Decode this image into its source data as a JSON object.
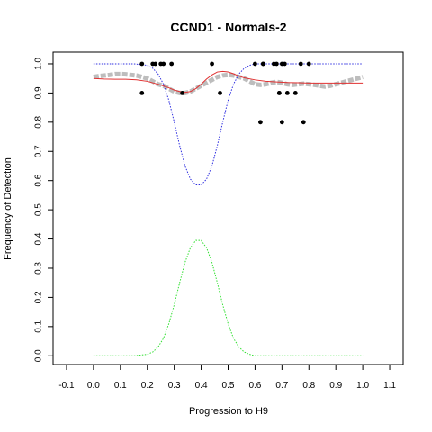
{
  "chart_data": {
    "type": "scatter",
    "title": "CCND1 - Normals-2",
    "xlabel": "Progression to H9",
    "ylabel": "Frequency of Detection",
    "xlim": [
      -0.15,
      1.15
    ],
    "ylim": [
      -0.03,
      1.04
    ],
    "x_ticks": [
      -0.1,
      0.0,
      0.1,
      0.2,
      0.3,
      0.4,
      0.5,
      0.6,
      0.7,
      0.8,
      0.9,
      1.0,
      1.1
    ],
    "x_tick_labels": [
      "-0.1",
      "0.0",
      "0.1",
      "0.2",
      "0.3",
      "0.4",
      "0.5",
      "0.6",
      "0.7",
      "0.8",
      "0.9",
      "1.0",
      "1.1"
    ],
    "y_ticks": [
      0.0,
      0.1,
      0.2,
      0.3,
      0.4,
      0.5,
      0.6,
      0.7,
      0.8,
      0.9,
      1.0
    ],
    "y_tick_labels": [
      "0.0",
      "0.1",
      "0.2",
      "0.3",
      "0.4",
      "0.5",
      "0.6",
      "0.7",
      "0.8",
      "0.9",
      "1.0"
    ],
    "grid": false,
    "legend": false,
    "colors": {
      "points": "#000000",
      "smoothed": "#bdbdbd",
      "fit": "#e03030",
      "upper": "#3030e0",
      "density": "#30e030"
    },
    "series": [
      {
        "kind": "points",
        "x": [
          0.18,
          0.18,
          0.22,
          0.23,
          0.25,
          0.26,
          0.29,
          0.33,
          0.44,
          0.47,
          0.6,
          0.62,
          0.63,
          0.63,
          0.67,
          0.68,
          0.69,
          0.69,
          0.7,
          0.7,
          0.71,
          0.72,
          0.75,
          0.77,
          0.78,
          0.8
        ],
        "y": [
          1.0,
          0.9,
          1.0,
          1.0,
          1.0,
          1.0,
          1.0,
          0.9,
          1.0,
          0.9,
          1.0,
          0.8,
          1.0,
          1.0,
          1.0,
          1.0,
          0.9,
          0.9,
          0.8,
          1.0,
          1.0,
          0.9,
          0.9,
          1.0,
          0.8,
          1.0
        ]
      },
      {
        "kind": "smoothed",
        "x": [
          0.0,
          0.02,
          0.04,
          0.06,
          0.08,
          0.1,
          0.12,
          0.14,
          0.16,
          0.18,
          0.2,
          0.22,
          0.24,
          0.26,
          0.28,
          0.3,
          0.32,
          0.34,
          0.36,
          0.38,
          0.4,
          0.42,
          0.44,
          0.46,
          0.48,
          0.5,
          0.52,
          0.54,
          0.56,
          0.58,
          0.6,
          0.62,
          0.64,
          0.66,
          0.68,
          0.7,
          0.72,
          0.74,
          0.76,
          0.78,
          0.8,
          0.82,
          0.84,
          0.86,
          0.88,
          0.9,
          0.92,
          0.94,
          0.96,
          0.98,
          1.0
        ],
        "y": [
          0.955,
          0.958,
          0.96,
          0.962,
          0.965,
          0.965,
          0.964,
          0.962,
          0.96,
          0.955,
          0.95,
          0.94,
          0.93,
          0.925,
          0.915,
          0.905,
          0.9,
          0.9,
          0.905,
          0.915,
          0.925,
          0.935,
          0.945,
          0.955,
          0.96,
          0.962,
          0.96,
          0.955,
          0.95,
          0.94,
          0.93,
          0.928,
          0.93,
          0.935,
          0.938,
          0.935,
          0.93,
          0.928,
          0.93,
          0.932,
          0.93,
          0.928,
          0.925,
          0.922,
          0.925,
          0.93,
          0.935,
          0.94,
          0.945,
          0.95,
          0.955
        ]
      },
      {
        "kind": "fit",
        "x": [
          0.0,
          0.04,
          0.08,
          0.12,
          0.16,
          0.2,
          0.24,
          0.28,
          0.3,
          0.32,
          0.34,
          0.36,
          0.38,
          0.4,
          0.42,
          0.44,
          0.46,
          0.48,
          0.5,
          0.52,
          0.54,
          0.56,
          0.6,
          0.64,
          0.68,
          0.72,
          0.76,
          0.8,
          0.84,
          0.88,
          0.92,
          0.96,
          1.0
        ],
        "y": [
          0.95,
          0.948,
          0.947,
          0.947,
          0.945,
          0.94,
          0.93,
          0.918,
          0.91,
          0.905,
          0.902,
          0.905,
          0.915,
          0.93,
          0.948,
          0.962,
          0.972,
          0.974,
          0.972,
          0.966,
          0.958,
          0.952,
          0.945,
          0.94,
          0.938,
          0.936,
          0.935,
          0.934,
          0.934,
          0.934,
          0.934,
          0.934,
          0.934
        ]
      },
      {
        "kind": "upper",
        "x": [
          0.0,
          0.05,
          0.1,
          0.15,
          0.2,
          0.22,
          0.24,
          0.26,
          0.28,
          0.3,
          0.32,
          0.34,
          0.36,
          0.38,
          0.4,
          0.42,
          0.44,
          0.46,
          0.48,
          0.5,
          0.52,
          0.54,
          0.56,
          0.58,
          0.6,
          0.65,
          0.7,
          0.8,
          0.9,
          1.0
        ],
        "y": [
          1.0,
          1.0,
          1.0,
          1.0,
          0.995,
          0.985,
          0.965,
          0.93,
          0.875,
          0.8,
          0.72,
          0.65,
          0.605,
          0.585,
          0.585,
          0.605,
          0.65,
          0.72,
          0.8,
          0.875,
          0.93,
          0.965,
          0.985,
          0.995,
          1.0,
          1.0,
          1.0,
          1.0,
          1.0,
          1.0
        ]
      },
      {
        "kind": "density",
        "x": [
          0.0,
          0.05,
          0.1,
          0.15,
          0.2,
          0.22,
          0.24,
          0.26,
          0.28,
          0.3,
          0.32,
          0.34,
          0.36,
          0.38,
          0.4,
          0.42,
          0.44,
          0.46,
          0.48,
          0.5,
          0.52,
          0.54,
          0.56,
          0.58,
          0.6,
          0.65,
          0.7,
          0.8,
          0.9,
          1.0
        ],
        "y": [
          0.0,
          0.0,
          0.0,
          0.0,
          0.005,
          0.013,
          0.03,
          0.06,
          0.11,
          0.175,
          0.25,
          0.32,
          0.37,
          0.395,
          0.395,
          0.37,
          0.32,
          0.25,
          0.175,
          0.11,
          0.06,
          0.03,
          0.013,
          0.005,
          0.0,
          0.0,
          0.0,
          0.0,
          0.0,
          0.0
        ]
      }
    ]
  }
}
